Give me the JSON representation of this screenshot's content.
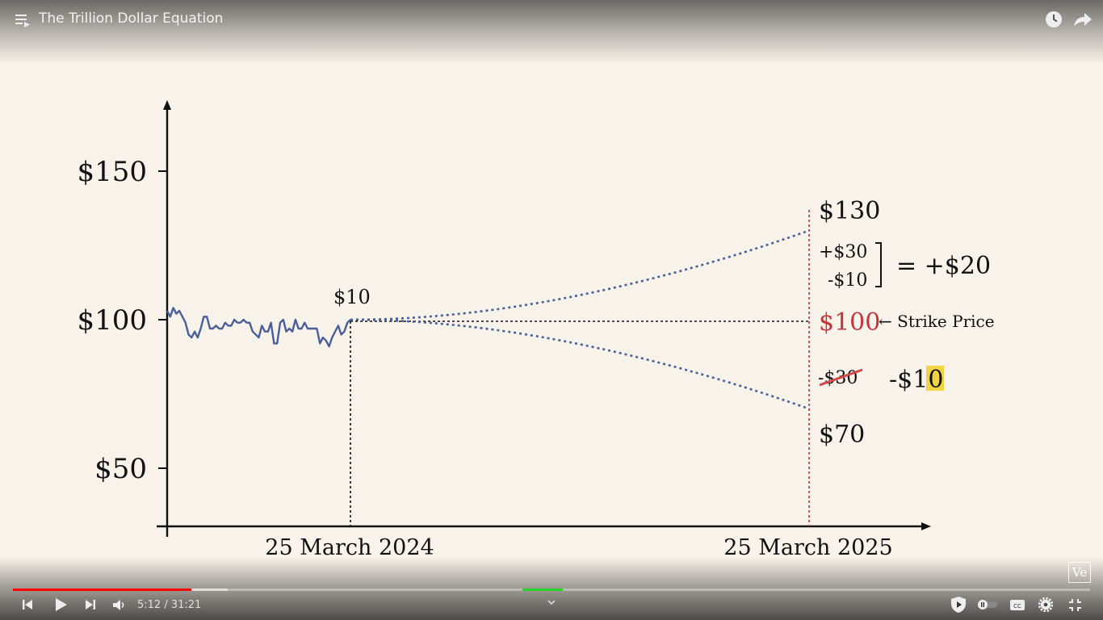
{
  "video": {
    "title": "The Trillion Dollar Equation",
    "time_current": "5:12",
    "time_total": "31:21",
    "time_display": "5:12 / 31:21",
    "progress": 0.166,
    "watermark": "Ve"
  },
  "icons": {
    "top_left": "playlist-icon",
    "top_right": [
      "watch-later-icon",
      "share-icon"
    ],
    "controls_left": [
      "previous-icon",
      "play-icon",
      "next-icon",
      "volume-icon"
    ],
    "controls_right": [
      "sponsorblock-icon",
      "autoplay-toggle-icon",
      "captions-icon",
      "settings-icon",
      "exit-fullscreen-icon"
    ],
    "center": "chevron-down-icon"
  },
  "chart_data": {
    "type": "line",
    "y_tick_labels": [
      "$150",
      "$100",
      "$50"
    ],
    "x_tick_labels": [
      "25 March 2024",
      "25 March 2025"
    ],
    "series": [
      {
        "values": [
          103,
          101,
          104,
          102,
          103,
          101,
          99,
          95,
          94,
          96,
          94,
          97,
          101,
          101,
          97,
          97,
          98,
          97,
          97,
          99,
          98,
          98,
          100,
          99,
          99,
          100,
          99,
          99,
          96,
          95,
          94,
          98,
          96,
          96,
          99,
          92,
          92,
          99,
          100,
          96,
          97,
          96,
          100,
          97,
          97,
          99,
          97,
          97,
          97,
          97,
          92,
          94,
          93,
          91,
          94,
          96,
          98,
          95,
          96,
          99,
          100
        ]
      }
    ],
    "projection": {
      "start": 100,
      "upper_end": 130,
      "lower_end": 70,
      "strike_line": 100
    },
    "annotations": {
      "start_label": "$10",
      "upper_label": "$130",
      "strike_label": "$100",
      "strike_text": "← Strike Price",
      "lower_label": "$70",
      "gain_line": "+$30",
      "cost_line": "-$10",
      "sum_text": "= +$20",
      "crossed_out": "-$30",
      "loss_prefix": "-$1",
      "loss_highlight": "0"
    },
    "colors": {
      "price": "#4a5f99",
      "projection": "#4a5f99",
      "strike": "#c4343b",
      "expiry_line": "#c9434b",
      "highlight": "#f1d346"
    }
  }
}
